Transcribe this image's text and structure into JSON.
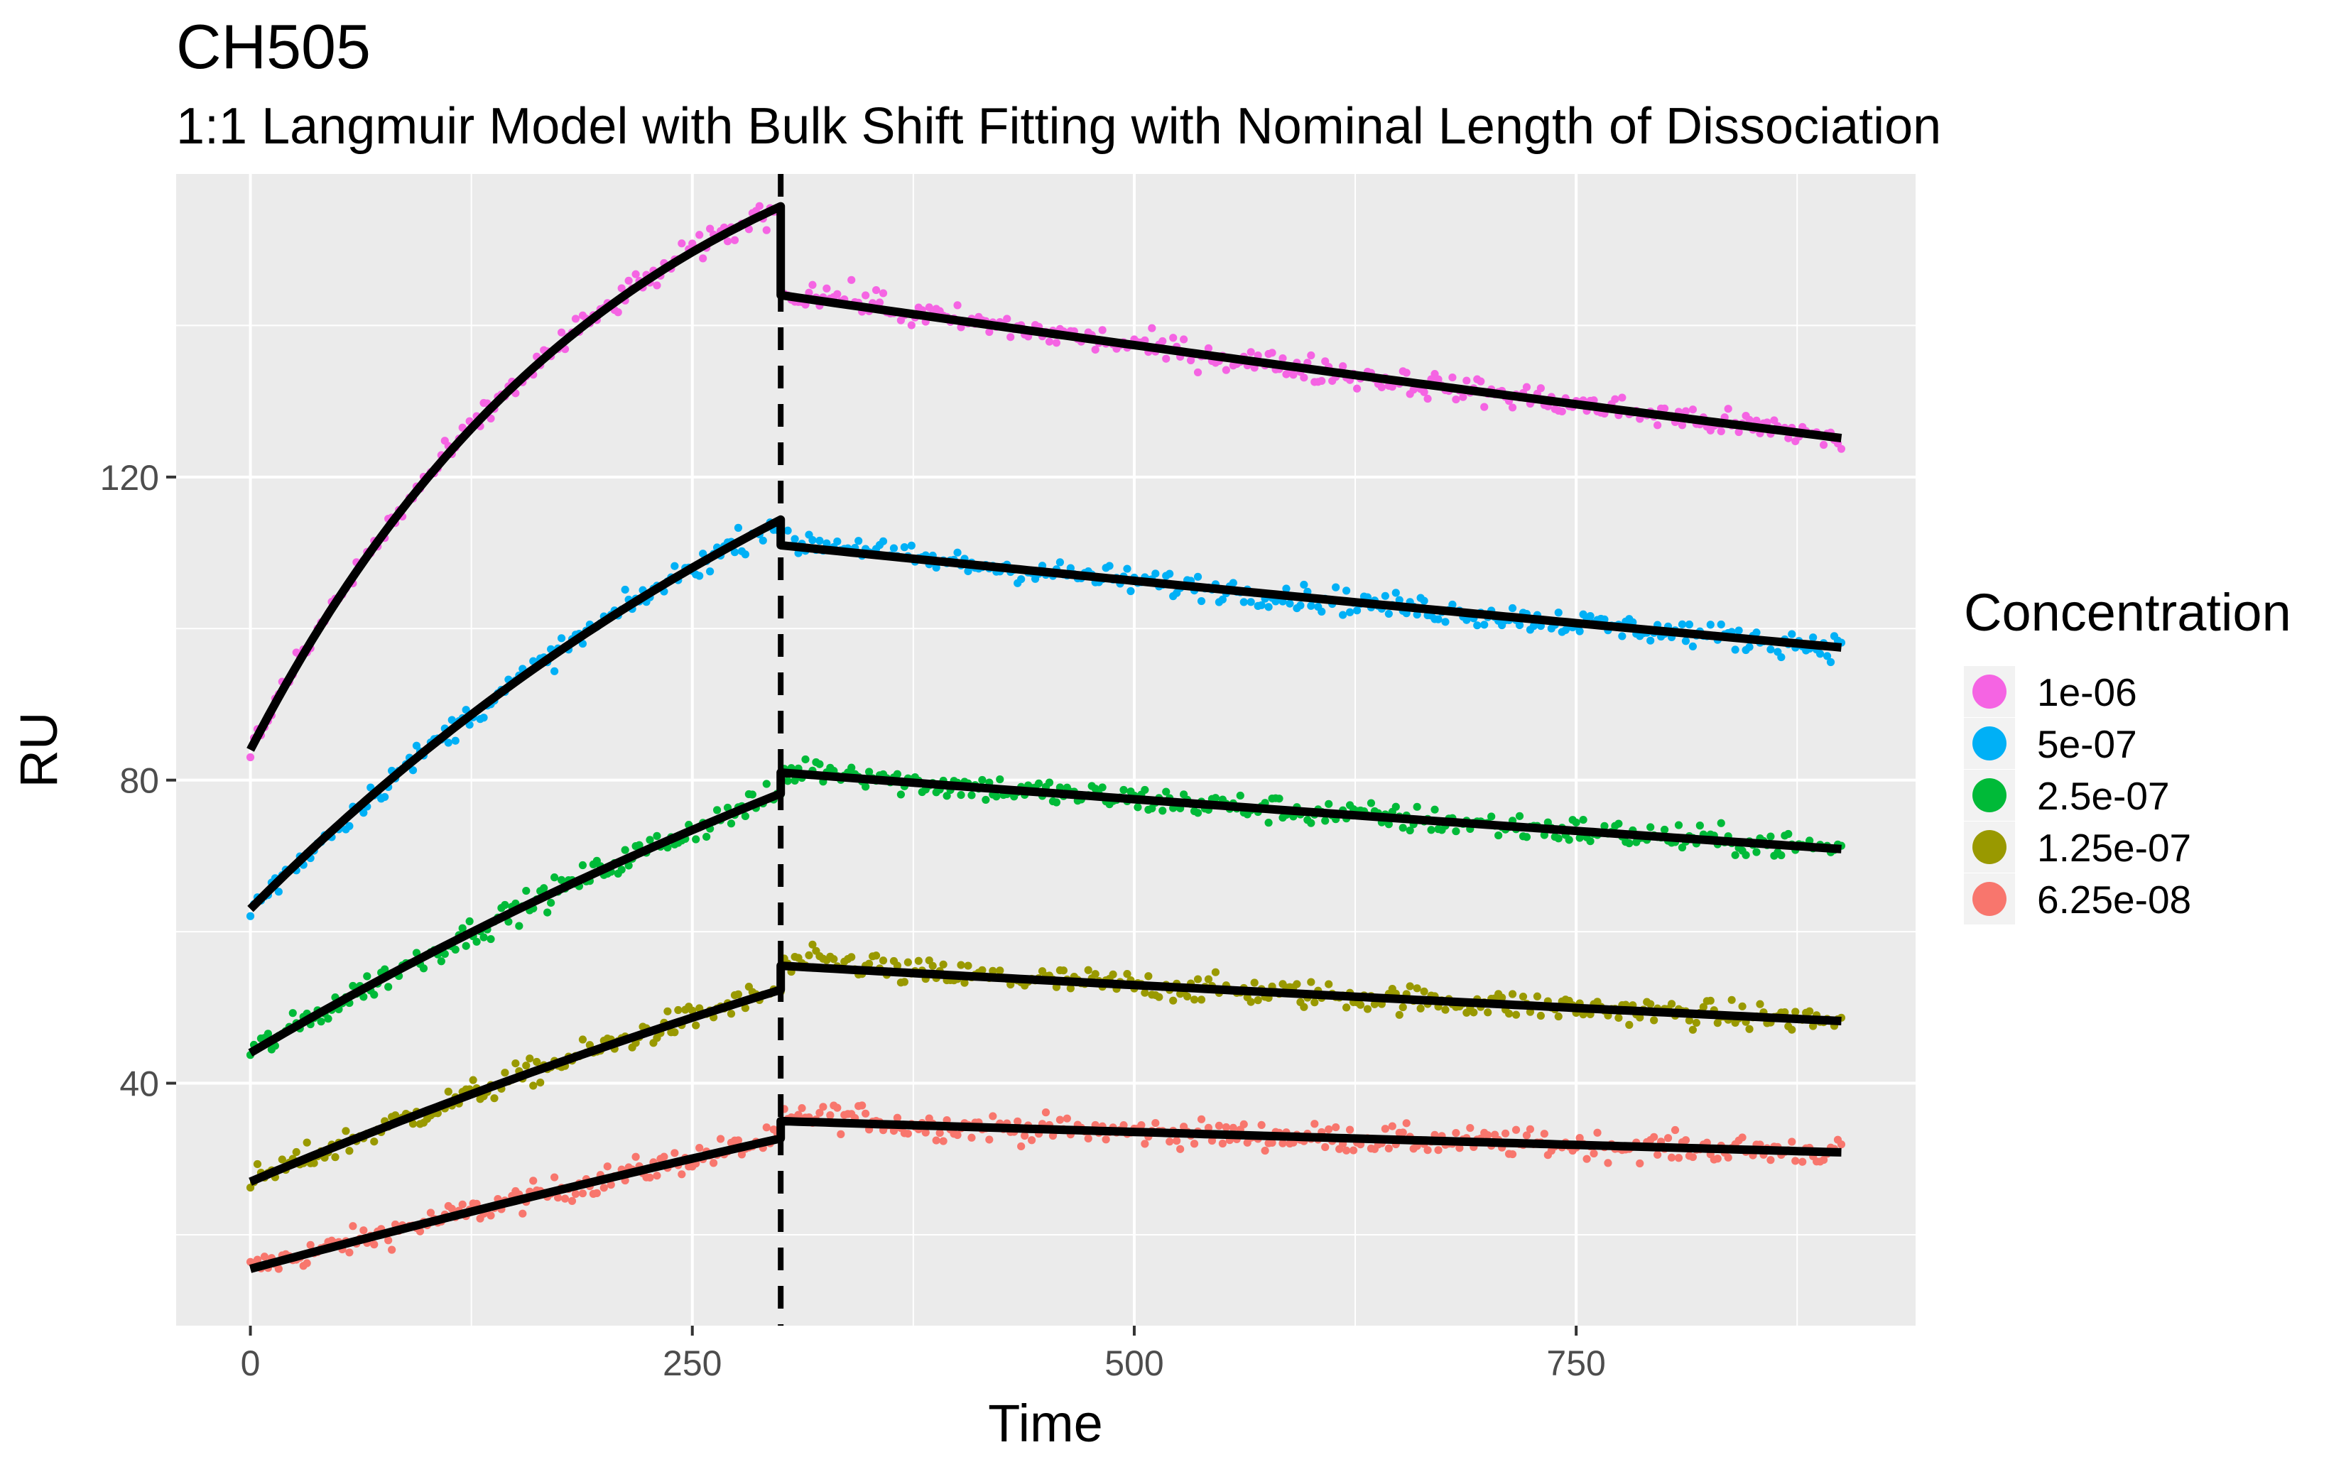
{
  "chart_data": {
    "type": "scatter",
    "title": "CH505",
    "subtitle": "1:1 Langmuir Model with Bulk Shift Fitting with Nominal Length of Dissociation",
    "xlabel": "Time",
    "ylabel": "RU",
    "xlim": [
      -42,
      942
    ],
    "ylim": [
      8,
      160
    ],
    "x_ticks": [
      0,
      250,
      500,
      750
    ],
    "y_ticks": [
      40,
      80,
      120
    ],
    "grid": true,
    "legend_title": "Concentration",
    "legend_position": "right",
    "vline": {
      "x": 300,
      "style": "dashed"
    },
    "assoc_end": 300,
    "dissoc_end": 900,
    "series": [
      {
        "name": "1e-06",
        "color": "#F564E3",
        "association": {
          "start": 84,
          "plateau": 178,
          "k": 0.0048,
          "end": 150
        },
        "dissociation": {
          "start": 144,
          "k": 0.000234,
          "end": 125.5
        },
        "noise": 1.3
      },
      {
        "name": "5e-07",
        "color": "#00B0F6",
        "association": {
          "start": 63,
          "plateau": 168,
          "k": 0.00224,
          "end": 113.5
        },
        "dissociation": {
          "start": 111,
          "k": 0.000216,
          "end": 97.5
        },
        "noise": 1.2
      },
      {
        "name": "2.5e-07",
        "color": "#00BA38",
        "association": {
          "start": 44,
          "plateau": 150,
          "k": 0.0013,
          "end": 81
        },
        "dissociation": {
          "start": 81,
          "k": 0.000222,
          "end": 71
        },
        "noise": 1.3
      },
      {
        "name": "1.25e-07",
        "color": "#999900",
        "association": {
          "start": 27,
          "plateau": 120,
          "k": 0.00106,
          "end": 55
        },
        "dissociation": {
          "start": 55.5,
          "k": 0.000235,
          "end": 48
        },
        "noise": 1.3
      },
      {
        "name": "6.25e-08",
        "color": "#F8766D",
        "association": {
          "start": 15.5,
          "plateau": 120,
          "k": 0.0006,
          "end": 33.5
        },
        "dissociation": {
          "start": 35,
          "k": 0.000209,
          "end": 30.5
        },
        "noise": 1.3
      }
    ]
  }
}
